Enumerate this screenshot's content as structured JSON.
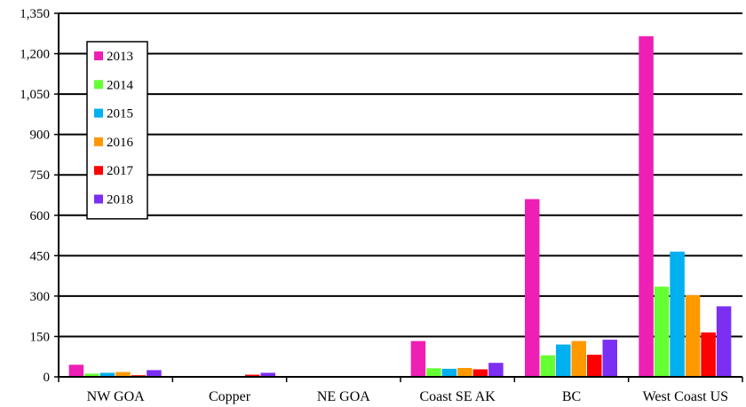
{
  "chart_data": {
    "type": "bar",
    "categories": [
      "NW GOA",
      "Copper",
      "NE GOA",
      "Coast SE AK",
      "BC",
      "West Coast US"
    ],
    "series": [
      {
        "name": "2013",
        "values": [
          45,
          0,
          0,
          133,
          660,
          1265
        ],
        "color": "#EE1FB5"
      },
      {
        "name": "2014",
        "values": [
          12,
          0,
          0,
          32,
          80,
          335
        ],
        "color": "#66FF33"
      },
      {
        "name": "2015",
        "values": [
          15,
          0,
          0,
          30,
          120,
          465
        ],
        "color": "#00B0F0"
      },
      {
        "name": "2016",
        "values": [
          18,
          0,
          0,
          33,
          133,
          303
        ],
        "color": "#FF9900"
      },
      {
        "name": "2017",
        "values": [
          6,
          8,
          0,
          28,
          82,
          165
        ],
        "color": "#FF0000"
      },
      {
        "name": "2018",
        "values": [
          25,
          15,
          0,
          52,
          138,
          262
        ],
        "color": "#7B2FF2"
      }
    ],
    "yticks": [
      "0",
      "150",
      "300",
      "450",
      "600",
      "750",
      "900",
      "1,050",
      "1,200",
      "1,350"
    ],
    "ylim": [
      0,
      1350
    ],
    "grid": true,
    "legend_position": "top-left",
    "title": "",
    "xlabel": "",
    "ylabel": ""
  }
}
